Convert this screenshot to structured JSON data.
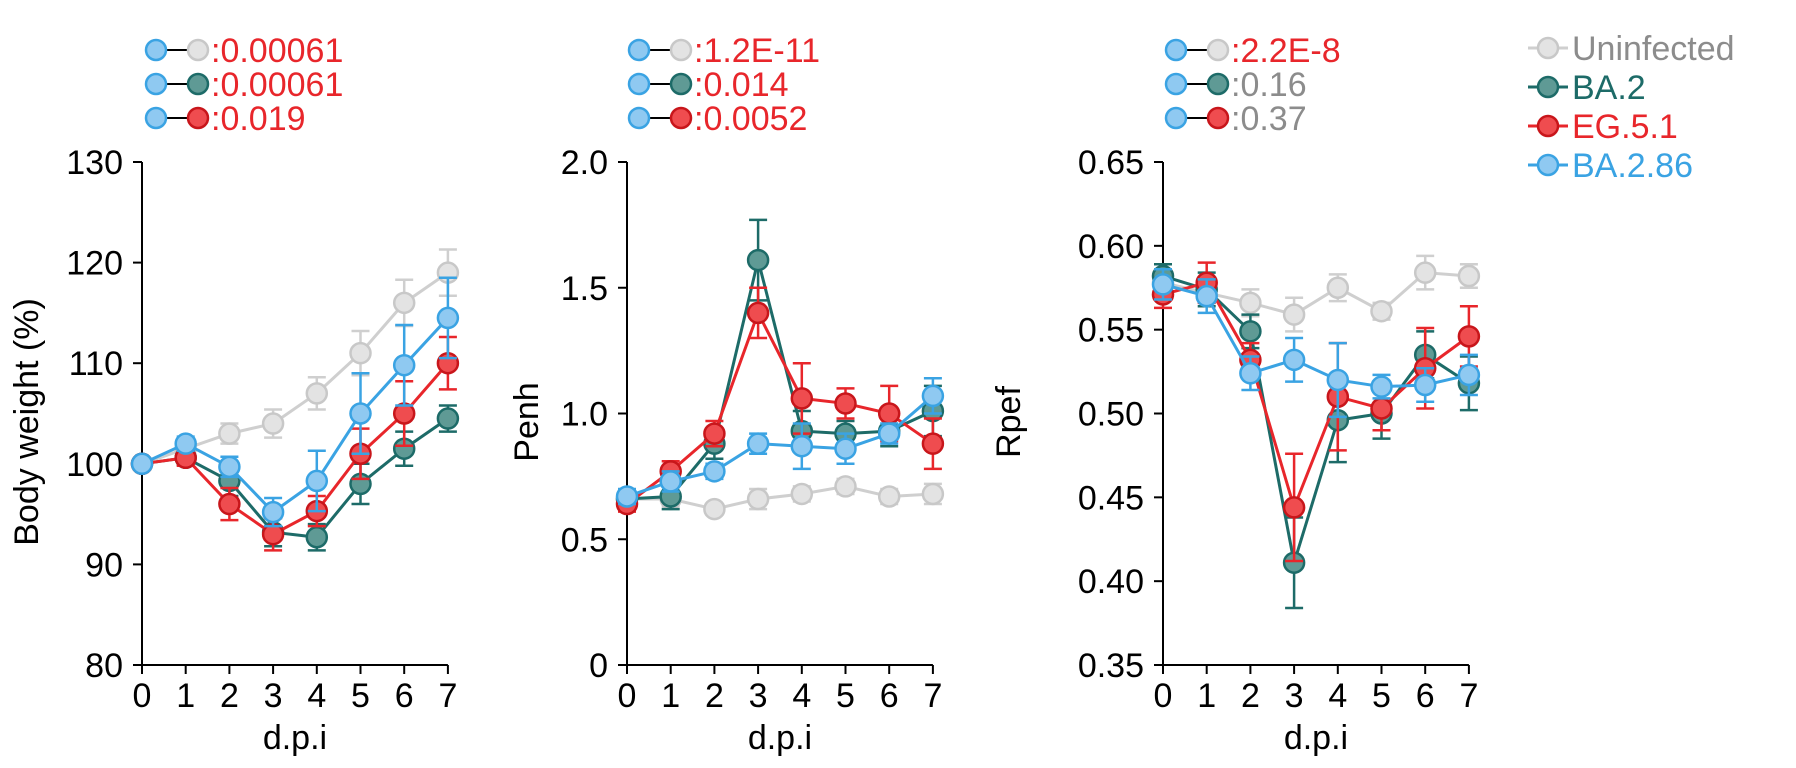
{
  "chart_data": [
    {
      "type": "line",
      "ylabel": "Body weight (%)",
      "xlabel": "d.p.i",
      "x": [
        0,
        1,
        2,
        3,
        4,
        5,
        6,
        7
      ],
      "ylim": [
        80,
        130
      ],
      "yticks": [
        "80",
        "90",
        "100",
        "110",
        "120",
        "130"
      ],
      "xticks": [
        "0",
        "1",
        "2",
        "3",
        "4",
        "5",
        "6",
        "7"
      ],
      "pvalues": [
        {
          "compare": "Uninfected",
          "label": ":0.00061",
          "color": "#e8262b"
        },
        {
          "compare": "BA.2",
          "label": ":0.00061",
          "color": "#e8262b"
        },
        {
          "compare": "EG.5.1",
          "label": ":0.019",
          "color": "#e8262b"
        }
      ],
      "series": [
        {
          "name": "Uninfected",
          "values": [
            100,
            101.5,
            103,
            104,
            107,
            111,
            116,
            119
          ],
          "errors": [
            0,
            0.8,
            1.0,
            1.4,
            1.6,
            2.2,
            2.3,
            2.3
          ]
        },
        {
          "name": "BA.2",
          "values": [
            100,
            100.6,
            98.3,
            93.2,
            92.7,
            98,
            101.5,
            104.5
          ],
          "errors": [
            0,
            0.7,
            1.5,
            1.4,
            1.3,
            2.0,
            1.7,
            1.3
          ]
        },
        {
          "name": "EG.5.1",
          "values": [
            100,
            100.6,
            96,
            93,
            95.3,
            101,
            105,
            110
          ],
          "errors": [
            0,
            0.8,
            1.6,
            1.6,
            1.5,
            2.5,
            3.2,
            2.6
          ]
        },
        {
          "name": "BA.2.86",
          "values": [
            100,
            102,
            99.7,
            95.2,
            98.3,
            105,
            109.8,
            114.5
          ],
          "errors": [
            0,
            0.7,
            1.0,
            1.4,
            3.0,
            4.0,
            4.0,
            4.0
          ]
        }
      ]
    },
    {
      "type": "line",
      "ylabel": "Penh",
      "xlabel": "d.p.i",
      "x": [
        0,
        1,
        2,
        3,
        4,
        5,
        6,
        7
      ],
      "ylim": [
        0,
        2.0
      ],
      "yticks": [
        "0",
        "0.5",
        "1.0",
        "1.5",
        "2.0"
      ],
      "xticks": [
        "0",
        "1",
        "2",
        "3",
        "4",
        "5",
        "6",
        "7"
      ],
      "pvalues": [
        {
          "compare": "Uninfected",
          "label": ":1.2E-11",
          "color": "#e8262b"
        },
        {
          "compare": "BA.2",
          "label": ":0.014",
          "color": "#e8262b"
        },
        {
          "compare": "EG.5.1",
          "label": ":0.0052",
          "color": "#e8262b"
        }
      ],
      "series": [
        {
          "name": "Uninfected",
          "values": [
            0.66,
            0.66,
            0.62,
            0.66,
            0.68,
            0.71,
            0.67,
            0.68
          ],
          "errors": [
            0,
            0.03,
            0.02,
            0.04,
            0.03,
            0.03,
            0.03,
            0.04
          ]
        },
        {
          "name": "BA.2",
          "values": [
            0.66,
            0.67,
            0.88,
            1.61,
            0.93,
            0.92,
            0.93,
            1.01
          ],
          "errors": [
            0.03,
            0.05,
            0.06,
            0.16,
            0.08,
            0.05,
            0.06,
            0.1
          ]
        },
        {
          "name": "EG.5.1",
          "values": [
            0.64,
            0.77,
            0.92,
            1.4,
            1.06,
            1.04,
            1.0,
            0.88
          ],
          "errors": [
            0.03,
            0.04,
            0.05,
            0.1,
            0.14,
            0.06,
            0.11,
            0.1
          ]
        },
        {
          "name": "BA.2.86",
          "values": [
            0.67,
            0.73,
            0.77,
            0.88,
            0.87,
            0.86,
            0.92,
            1.07
          ],
          "errors": [
            0.03,
            0.04,
            0.03,
            0.04,
            0.09,
            0.06,
            0.04,
            0.07
          ]
        }
      ]
    },
    {
      "type": "line",
      "ylabel": "Rpef",
      "xlabel": "d.p.i",
      "x": [
        0,
        1,
        2,
        3,
        4,
        5,
        6,
        7
      ],
      "ylim": [
        0.35,
        0.65
      ],
      "yticks": [
        "0.35",
        "0.40",
        "0.45",
        "0.50",
        "0.55",
        "0.60",
        "0.65"
      ],
      "xticks": [
        "0",
        "1",
        "2",
        "3",
        "4",
        "5",
        "6",
        "7"
      ],
      "pvalues": [
        {
          "compare": "Uninfected",
          "label": ":2.2E-8",
          "color": "#e8262b"
        },
        {
          "compare": "BA.2",
          "label": ":0.16",
          "color": "#8c8c8c"
        },
        {
          "compare": "EG.5.1",
          "label": ":0.37",
          "color": "#8c8c8c"
        }
      ],
      "series": [
        {
          "name": "Uninfected",
          "values": [
            0.578,
            0.572,
            0.566,
            0.559,
            0.575,
            0.561,
            0.584,
            0.582
          ],
          "errors": [
            0.006,
            0.006,
            0.008,
            0.01,
            0.008,
            0.005,
            0.01,
            0.007
          ]
        },
        {
          "name": "BA.2",
          "values": [
            0.582,
            0.574,
            0.549,
            0.411,
            0.496,
            0.5,
            0.535,
            0.518
          ],
          "errors": [
            0.007,
            0.01,
            0.01,
            0.027,
            0.025,
            0.015,
            0.014,
            0.016
          ]
        },
        {
          "name": "EG.5.1",
          "values": [
            0.571,
            0.578,
            0.532,
            0.444,
            0.51,
            0.503,
            0.527,
            0.546
          ],
          "errors": [
            0.008,
            0.012,
            0.01,
            0.032,
            0.032,
            0.013,
            0.024,
            0.018
          ]
        },
        {
          "name": "BA.2.86",
          "values": [
            0.577,
            0.57,
            0.524,
            0.532,
            0.52,
            0.516,
            0.517,
            0.523
          ],
          "errors": [
            0.009,
            0.01,
            0.01,
            0.013,
            0.022,
            0.007,
            0.01,
            0.012
          ]
        }
      ]
    }
  ],
  "legend": {
    "placement": "top-right",
    "entries": [
      {
        "name": "Uninfected",
        "color": "#8c8c8c"
      },
      {
        "name": "BA.2",
        "color": "#1d6b68"
      },
      {
        "name": "EG.5.1",
        "color": "#e8262b"
      },
      {
        "name": "BA.2.86",
        "color": "#3aa3e3"
      }
    ]
  },
  "colors": {
    "Uninfected": {
      "fill": "#e3e3e3",
      "stroke": "#c8c8c8",
      "line": "#cfcfcf"
    },
    "BA.2": {
      "fill": "#5f9a95",
      "stroke": "#1d6b68",
      "line": "#1d6b68"
    },
    "EG.5.1": {
      "fill": "#ef4c4f",
      "stroke": "#c8161b",
      "line": "#e8262b"
    },
    "BA.2.86": {
      "fill": "#8fc9f1",
      "stroke": "#3aa3e3",
      "line": "#3aa3e3"
    }
  }
}
